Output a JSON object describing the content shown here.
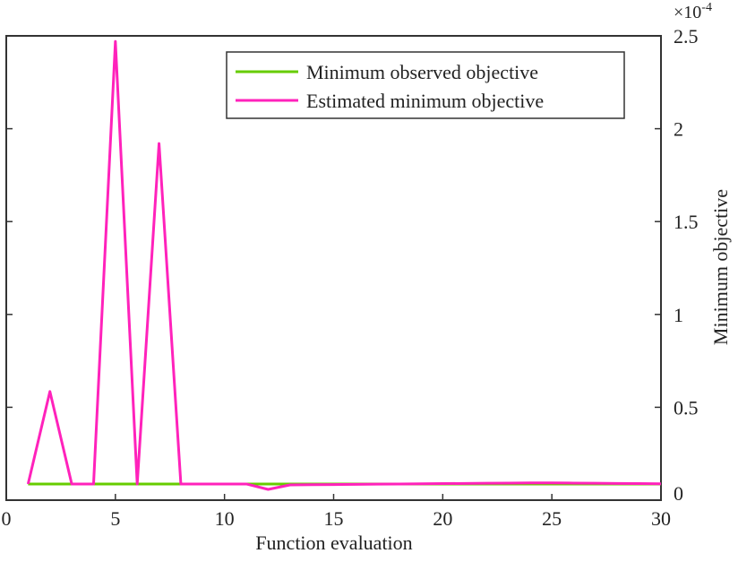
{
  "chart_data": {
    "type": "line",
    "xlabel": "Function evaluation",
    "ylabel": "Minimum objective",
    "y_exponent_label": "×10",
    "y_exponent_power": "-4",
    "xlim": [
      0,
      30
    ],
    "ylim": [
      0,
      2.5
    ],
    "xticks": [
      "0",
      "5",
      "10",
      "15",
      "20",
      "25",
      "30"
    ],
    "yticks": [
      "0",
      "0.5",
      "1",
      "1.5",
      "2",
      "2.5"
    ],
    "grid": false,
    "legend_position": "top-right",
    "x": [
      1,
      2,
      3,
      4,
      5,
      6,
      7,
      8,
      9,
      10,
      11,
      12,
      13,
      14,
      15,
      16,
      17,
      18,
      19,
      20,
      21,
      22,
      23,
      24,
      25,
      26,
      27,
      28,
      29,
      30
    ],
    "series": [
      {
        "name": "Minimum observed objective",
        "color": "#66cc00",
        "values": [
          0.087,
          0.087,
          0.087,
          0.087,
          0.087,
          0.087,
          0.087,
          0.087,
          0.087,
          0.087,
          0.087,
          0.087,
          0.087,
          0.087,
          0.087,
          0.087,
          0.087,
          0.087,
          0.087,
          0.087,
          0.087,
          0.087,
          0.087,
          0.087,
          0.087,
          0.087,
          0.087,
          0.087,
          0.087,
          0.087
        ]
      },
      {
        "name": "Estimated minimum objective",
        "color": "#ff22bb",
        "values": [
          0.087,
          0.585,
          0.087,
          0.087,
          2.47,
          0.087,
          1.92,
          0.087,
          0.087,
          0.087,
          0.087,
          0.058,
          0.082,
          0.083,
          0.084,
          0.085,
          0.086,
          0.087,
          0.088,
          0.089,
          0.09,
          0.091,
          0.092,
          0.093,
          0.093,
          0.092,
          0.091,
          0.09,
          0.089,
          0.088
        ]
      }
    ]
  }
}
